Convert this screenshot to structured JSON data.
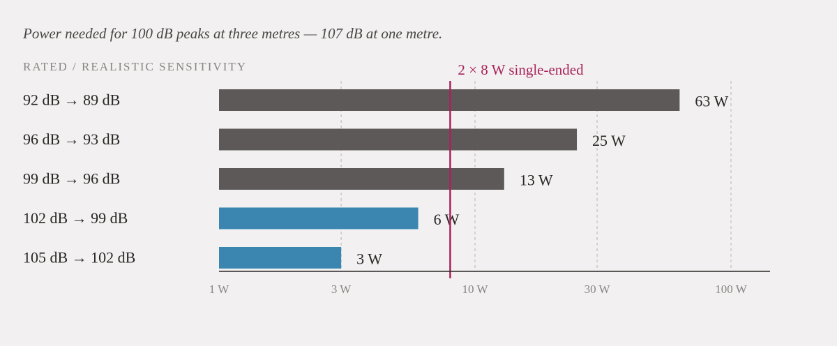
{
  "chart_data": {
    "type": "bar",
    "orientation": "horizontal",
    "subtitle": "Power needed for 100 dB peaks at three metres — 107 dB at one metre.",
    "ylabel": "RATED / REALISTIC SENSITIVITY",
    "xscale": "log",
    "xlim": [
      1,
      110
    ],
    "grid": true,
    "categories": [
      "92 dB → 89 dB",
      "96 dB → 93 dB",
      "99 dB → 96 dB",
      "102 dB → 99 dB",
      "105 dB → 102 dB"
    ],
    "values": [
      63,
      25,
      13,
      6,
      3
    ],
    "value_labels": [
      "63 W",
      "25 W",
      "13 W",
      "6 W",
      "3 W"
    ],
    "bar_colors": [
      "#5e5959",
      "#5e5959",
      "#5e5959",
      "#3a86b0",
      "#3a86b0"
    ],
    "x_ticks": [
      {
        "value": 1,
        "label": "1 W"
      },
      {
        "value": 3,
        "label": "3 W"
      },
      {
        "value": 10,
        "label": "10 W"
      },
      {
        "value": 30,
        "label": "30 W"
      },
      {
        "value": 100,
        "label": "100 W"
      }
    ],
    "reference_line": {
      "value": 8,
      "label": "2 × 8 W single-ended",
      "color": "#a8235a"
    }
  }
}
